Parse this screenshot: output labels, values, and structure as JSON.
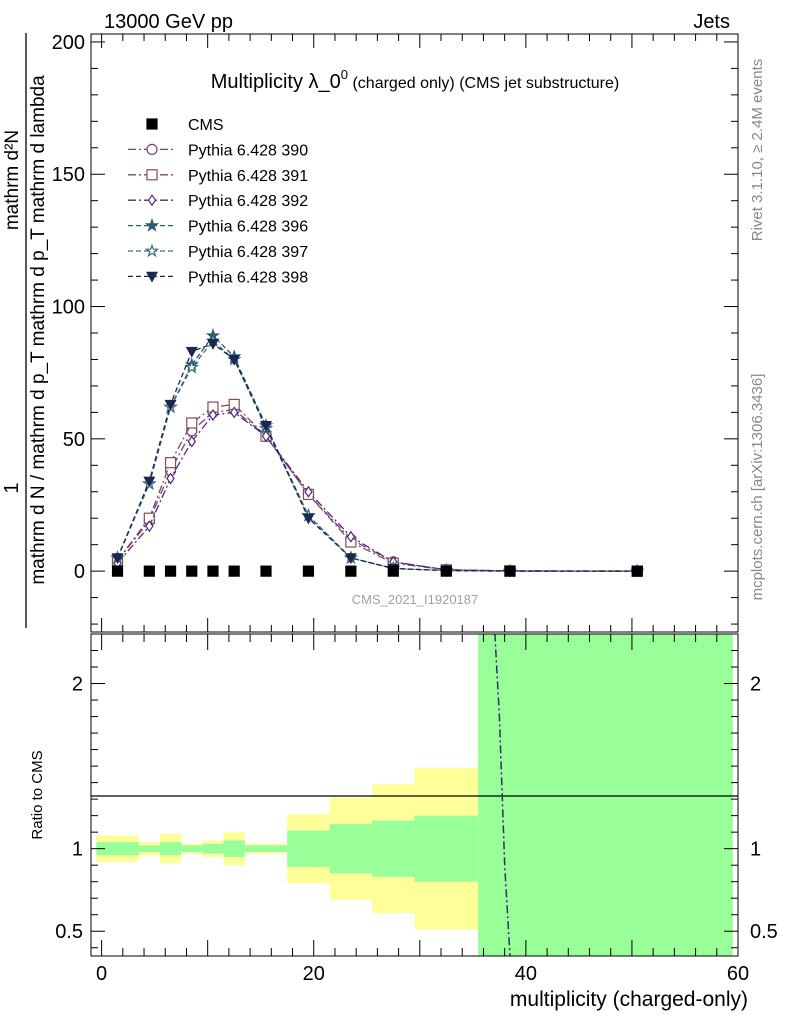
{
  "header": {
    "left": "13000 GeV pp",
    "right": "Jets"
  },
  "side_labels": {
    "top": "Rivet 3.1.10, ≥ 2.4M events",
    "bottom": "mcplots.cern.ch [arXiv:1306.3436]"
  },
  "watermark": "CMS_2021_I1920187",
  "chart_data": [
    {
      "type": "line",
      "title_main": "Multiplicity λ_0",
      "title_sup": "0",
      "title_sub": " (charged only) (CMS jet substructure)",
      "ylabel_num": "1",
      "ylabel_den": "mathrm d N / mathrm d p_T mathrm d p_T mathrm d lambda",
      "ylabel_top": "mathrm d²N",
      "ylim": [
        -23,
        203
      ],
      "yticks": [
        0,
        50,
        100,
        150,
        200
      ],
      "xlim": [
        -1,
        60
      ],
      "legend_position": "top-left",
      "series": [
        {
          "name": "CMS",
          "color": "#000000",
          "marker": "square-filled",
          "dash": "none",
          "x": [
            1.5,
            4.5,
            6.5,
            8.5,
            10.5,
            12.5,
            15.5,
            19.5,
            23.5,
            27.5,
            32.5,
            38.5,
            50.5
          ],
          "y": [
            0,
            0,
            0,
            0,
            0,
            0,
            0,
            0,
            0,
            0,
            0,
            0,
            0
          ]
        },
        {
          "name": "Pythia 6.428 390",
          "color": "#7b3f7b",
          "marker": "circle-open",
          "dash": "8,3,2,3",
          "x": [
            1.5,
            4.5,
            6.5,
            8.5,
            10.5,
            12.5,
            15.5,
            19.5,
            23.5,
            27.5,
            32.5,
            38.5,
            50.5
          ],
          "y": [
            4,
            19,
            38,
            53,
            60,
            61,
            51,
            29,
            12,
            3.5,
            0.5,
            0.1,
            0
          ]
        },
        {
          "name": "Pythia 6.428 391",
          "color": "#805050",
          "marker": "square-open",
          "dash": "8,3,2,3",
          "x": [
            1.5,
            4.5,
            6.5,
            8.5,
            10.5,
            12.5,
            15.5,
            19.5,
            23.5,
            27.5,
            32.5,
            38.5,
            50.5
          ],
          "y": [
            4,
            20,
            41,
            56,
            62,
            63,
            51,
            29,
            11,
            3,
            0.5,
            0.1,
            0
          ]
        },
        {
          "name": "Pythia 6.428 392",
          "color": "#4b2a80",
          "marker": "diamond-open",
          "dash": "8,3,2,3",
          "x": [
            1.5,
            4.5,
            6.5,
            8.5,
            10.5,
            12.5,
            15.5,
            19.5,
            23.5,
            27.5,
            32.5,
            38.5,
            50.5
          ],
          "y": [
            3,
            17,
            35,
            49,
            59,
            60,
            51,
            30,
            13,
            3.5,
            0.5,
            0.1,
            0
          ]
        },
        {
          "name": "Pythia 6.428 396",
          "color": "#2e5a6e",
          "marker": "star-filled",
          "dash": "5,3",
          "x": [
            1.5,
            4.5,
            6.5,
            8.5,
            10.5,
            12.5,
            15.5,
            19.5,
            23.5,
            27.5,
            32.5,
            38.5,
            50.5
          ],
          "y": [
            5,
            33,
            62,
            78,
            89,
            81,
            55,
            21,
            5,
            1,
            0.2,
            0,
            0
          ]
        },
        {
          "name": "Pythia 6.428 397",
          "color": "#3a6a80",
          "marker": "star-open",
          "dash": "5,3",
          "x": [
            1.5,
            4.5,
            6.5,
            8.5,
            10.5,
            12.5,
            15.5,
            19.5,
            23.5,
            27.5,
            32.5,
            38.5,
            50.5
          ],
          "y": [
            5,
            33,
            62,
            77,
            87,
            80,
            54,
            21,
            5,
            1,
            0.2,
            0,
            0
          ]
        },
        {
          "name": "Pythia 6.428 398",
          "color": "#1c2850",
          "marker": "triangle-down-filled",
          "dash": "5,3",
          "x": [
            1.5,
            4.5,
            6.5,
            8.5,
            10.5,
            12.5,
            15.5,
            19.5,
            23.5,
            27.5,
            32.5,
            38.5,
            50.5
          ],
          "y": [
            5,
            34,
            63,
            83,
            86,
            80,
            55,
            20,
            5,
            1,
            0.2,
            0,
            0
          ]
        }
      ]
    },
    {
      "type": "area",
      "ylabel": "Ratio to CMS",
      "xlabel": "multiplicity (charged-only)",
      "ylim": [
        0.35,
        2.3
      ],
      "yticks": [
        0.5,
        1,
        2
      ],
      "ytick_labels": [
        "0.5",
        "1",
        "2"
      ],
      "xlim": [
        -1,
        60
      ],
      "xticks": [
        0,
        20,
        40,
        60
      ],
      "band_colors": {
        "outer": "#ffff99",
        "inner": "#99ff99"
      },
      "bins": [
        {
          "lo": -0.5,
          "hi": 3.5,
          "outer": [
            0.92,
            1.08
          ],
          "inner": [
            0.96,
            1.04
          ]
        },
        {
          "lo": 3.5,
          "hi": 5.5,
          "outer": [
            0.96,
            1.04
          ],
          "inner": [
            0.98,
            1.02
          ]
        },
        {
          "lo": 5.5,
          "hi": 7.5,
          "outer": [
            0.91,
            1.09
          ],
          "inner": [
            0.96,
            1.04
          ]
        },
        {
          "lo": 7.5,
          "hi": 9.5,
          "outer": [
            0.97,
            1.03
          ],
          "inner": [
            0.98,
            1.02
          ]
        },
        {
          "lo": 9.5,
          "hi": 11.5,
          "outer": [
            0.95,
            1.05
          ],
          "inner": [
            0.97,
            1.03
          ]
        },
        {
          "lo": 11.5,
          "hi": 13.5,
          "outer": [
            0.9,
            1.1
          ],
          "inner": [
            0.95,
            1.05
          ]
        },
        {
          "lo": 13.5,
          "hi": 17.5,
          "outer": [
            0.97,
            1.03
          ],
          "inner": [
            0.98,
            1.02
          ]
        },
        {
          "lo": 17.5,
          "hi": 21.5,
          "outer": [
            0.79,
            1.21
          ],
          "inner": [
            0.89,
            1.11
          ]
        },
        {
          "lo": 21.5,
          "hi": 25.5,
          "outer": [
            0.69,
            1.31
          ],
          "inner": [
            0.85,
            1.15
          ]
        },
        {
          "lo": 25.5,
          "hi": 29.5,
          "outer": [
            0.61,
            1.39
          ],
          "inner": [
            0.83,
            1.17
          ]
        },
        {
          "lo": 29.5,
          "hi": 35.5,
          "outer": [
            0.51,
            1.49
          ],
          "inner": [
            0.8,
            1.2
          ]
        },
        {
          "lo": 35.5,
          "hi": 59.5,
          "outer": [
            0.0,
            5.0
          ],
          "inner": [
            0.0,
            5.0
          ]
        }
      ],
      "ratio_line": {
        "color": "#3a2a70",
        "x": [
          37.0,
          37.5,
          38.0,
          38.5
        ],
        "y": [
          2.4,
          1.8,
          0.9,
          0.35
        ]
      }
    }
  ]
}
